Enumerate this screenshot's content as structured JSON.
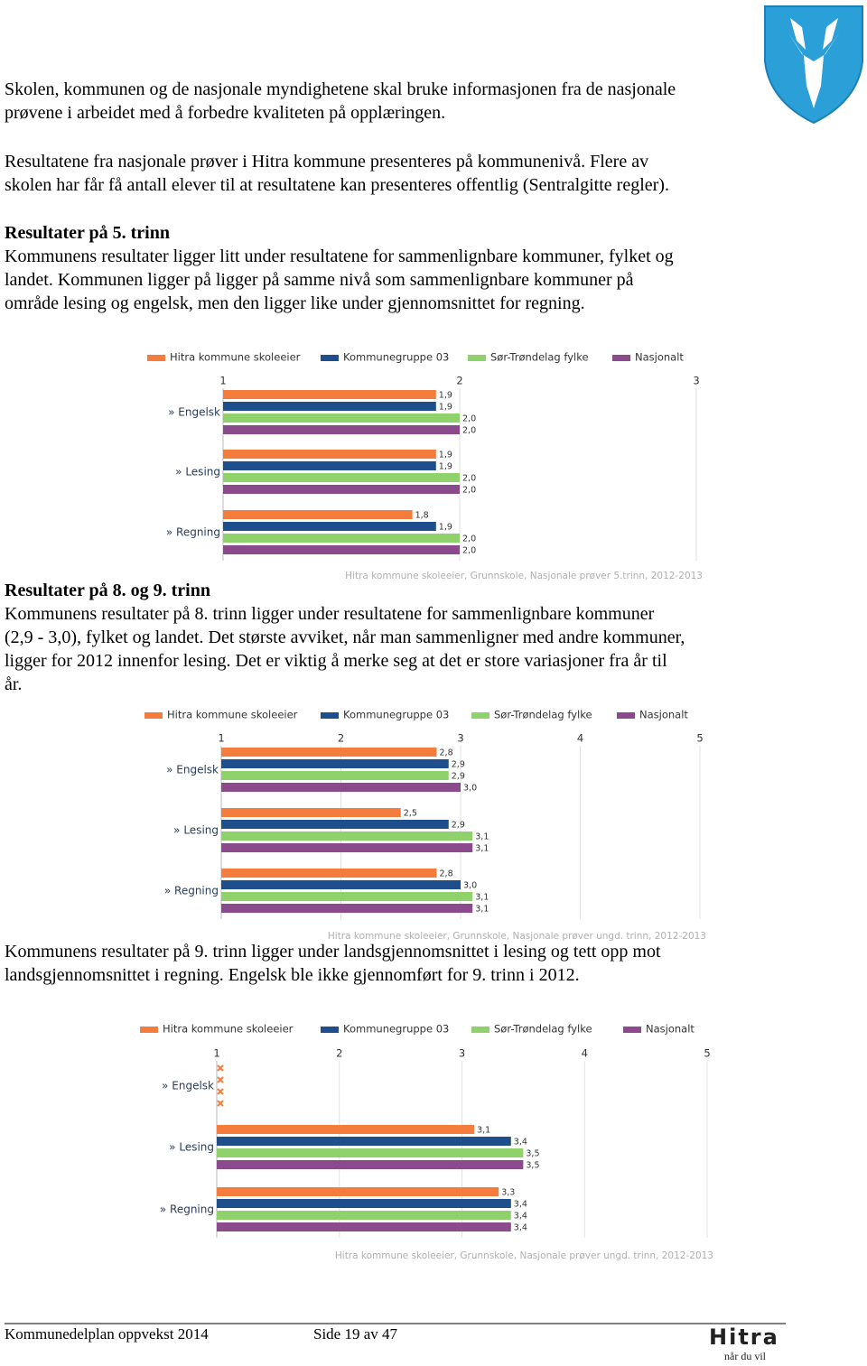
{
  "blocks": [
    {
      "lines": [
        "Skolen, kommunen og de nasjonale myndighetene skal bruke informasjonen fra de nasjonale",
        "prøvene i arbeidet med å forbedre kvaliteten på opplæringen."
      ]
    },
    {
      "lines": [
        "Resultatene fra nasjonale prøver i Hitra kommune presenteres på kommunenivå. Flere av",
        "skolen har får få antall elever til at resultatene kan presenteres offentlig (Sentralgitte regler)."
      ]
    },
    {
      "heading": "Resultater på 5. trinn",
      "lines": [
        "Kommunens resultater ligger litt under resultatene for sammenlignbare kommuner, fylket og",
        "landet. Kommunen ligger på ligger på samme nivå som sammenlignbare kommuner på",
        "område lesing og engelsk, men den ligger like under gjennomsnittet for regning."
      ]
    },
    {
      "heading": "Resultater på 8. og 9. trinn",
      "lines": [
        "Kommunens resultater på 8. trinn ligger under resultatene for sammenlignbare kommuner",
        "(2,9 - 3,0), fylket og landet. Det største avviket, når man sammenligner med andre kommuner,",
        "ligger for 2012 innenfor lesing. Det er viktig å merke seg at det er store variasjoner fra år til",
        "år."
      ]
    },
    {
      "lines": [
        "Kommunens resultater på 9. trinn ligger under landsgjennomsnittet i lesing og tett opp mot",
        "landsgjennomsnittet i regning. Engelsk ble ikke gjennomført for 9. trinn i 2012."
      ]
    }
  ],
  "chart_data": [
    {
      "type": "bar",
      "orientation": "horizontal",
      "legend": "top",
      "grid": true,
      "categories": [
        "» Engelsk",
        "» Lesing",
        "» Regning"
      ],
      "xlim": [
        1,
        3
      ],
      "xticks": [
        1,
        2,
        3
      ],
      "series": [
        {
          "name": "Hitra kommune skoleeier",
          "color": "#f47c3c",
          "values": [
            1.9,
            1.9,
            1.8
          ],
          "value_labels": [
            "1,9",
            "1,9",
            "1,8"
          ]
        },
        {
          "name": "Kommunegruppe 03",
          "color": "#1f4e8c",
          "values": [
            1.9,
            1.9,
            1.9
          ],
          "value_labels": [
            "1,9",
            "1,9",
            "1,9"
          ]
        },
        {
          "name": "Sør-Trøndelag fylke",
          "color": "#8fd16a",
          "values": [
            2.0,
            2.0,
            2.0
          ],
          "value_labels": [
            "2,0",
            "2,0",
            "2,0"
          ]
        },
        {
          "name": "Nasjonalt",
          "color": "#8b4a8c",
          "values": [
            2.0,
            2.0,
            2.0
          ],
          "value_labels": [
            "2,0",
            "2,0",
            "2,0"
          ]
        }
      ],
      "source": "Hitra kommune skoleeier, Grunnskole, Nasjonale prøver 5.trinn, 2012-2013"
    },
    {
      "type": "bar",
      "orientation": "horizontal",
      "legend": "top",
      "grid": true,
      "categories": [
        "» Engelsk",
        "» Lesing",
        "» Regning"
      ],
      "xlim": [
        1,
        5
      ],
      "xticks": [
        1,
        2,
        3,
        4,
        5
      ],
      "series": [
        {
          "name": "Hitra kommune skoleeier",
          "color": "#f47c3c",
          "values": [
            2.8,
            2.5,
            2.8
          ],
          "value_labels": [
            "2,8",
            "2,5",
            "2,8"
          ]
        },
        {
          "name": "Kommunegruppe 03",
          "color": "#1f4e8c",
          "values": [
            2.9,
            2.9,
            3.0
          ],
          "value_labels": [
            "2,9",
            "2,9",
            "3,0"
          ]
        },
        {
          "name": "Sør-Trøndelag fylke",
          "color": "#8fd16a",
          "values": [
            2.9,
            3.1,
            3.1
          ],
          "value_labels": [
            "2,9",
            "3,1",
            "3,1"
          ]
        },
        {
          "name": "Nasjonalt",
          "color": "#8b4a8c",
          "values": [
            3.0,
            3.1,
            3.1
          ],
          "value_labels": [
            "3,0",
            "3,1",
            "3,1"
          ]
        }
      ],
      "source": "Hitra kommune skoleeier, Grunnskole, Nasjonale prøver ungd. trinn, 2012-2013"
    },
    {
      "type": "bar",
      "orientation": "horizontal",
      "legend": "top",
      "grid": true,
      "categories": [
        "» Engelsk",
        "» Lesing",
        "» Regning"
      ],
      "xlim": [
        1,
        5
      ],
      "xticks": [
        1,
        2,
        3,
        4,
        5
      ],
      "series": [
        {
          "name": "Hitra kommune skoleeier",
          "color": "#f47c3c",
          "values": [
            null,
            3.1,
            3.3
          ],
          "value_labels": [
            null,
            "3,1",
            "3,3"
          ]
        },
        {
          "name": "Kommunegruppe 03",
          "color": "#1f4e8c",
          "values": [
            null,
            3.4,
            3.4
          ],
          "value_labels": [
            null,
            "3,4",
            "3,4"
          ]
        },
        {
          "name": "Sør-Trøndelag fylke",
          "color": "#8fd16a",
          "values": [
            null,
            3.5,
            3.4
          ],
          "value_labels": [
            null,
            "3,5",
            "3,4"
          ]
        },
        {
          "name": "Nasjonalt",
          "color": "#8b4a8c",
          "values": [
            null,
            3.5,
            3.4
          ],
          "value_labels": [
            null,
            "3,5",
            "3,4"
          ]
        }
      ],
      "source": "Hitra kommune skoleeier, Grunnskole, Nasjonale prøver ungd. trinn, 2012-2013"
    }
  ],
  "footer": {
    "left": "Kommunedelplan oppvekst 2014",
    "page": "Side 19 av 47",
    "logo": "Hitra",
    "slogan": "når du vil"
  }
}
